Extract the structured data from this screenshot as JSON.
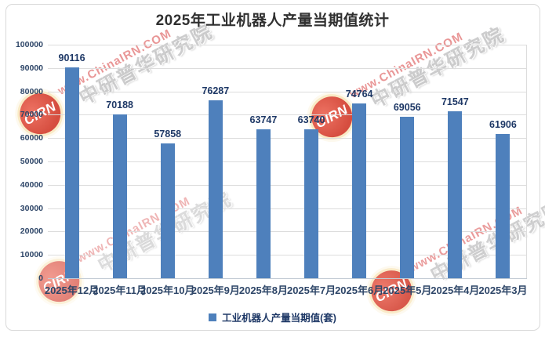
{
  "chart": {
    "title": "2025年工业机器人产量当期值统计"
  },
  "chart_data": {
    "type": "bar",
    "title": "2025年工业机器人产量当期值统计",
    "categories": [
      "2025年12月",
      "2025年11月",
      "2025年10月",
      "2025年9月",
      "2025年8月",
      "2025年7月",
      "2025年6月",
      "2025年5月",
      "2025年4月",
      "2025年3月"
    ],
    "values": [
      90116,
      70188,
      57858,
      76287,
      63747,
      63740,
      74764,
      69056,
      71547,
      61906
    ],
    "xlabel": "",
    "ylabel": "",
    "ylim": [
      0,
      100000
    ],
    "ytick_step": 10000,
    "yticks": [
      "100000",
      "90000",
      "80000",
      "70000",
      "60000",
      "50000",
      "40000",
      "30000",
      "20000",
      "10000",
      "0"
    ],
    "grid": true,
    "legend": [
      "工业机器人产量当期值(套)"
    ],
    "legend_position": "bottom",
    "bar_color": "#4e80bc",
    "value_label_color": "#1e3866"
  },
  "watermark": {
    "logo_text": "CIRN",
    "line1": "www.ChinaIRN.COM",
    "line2": "中研普华研究院"
  }
}
